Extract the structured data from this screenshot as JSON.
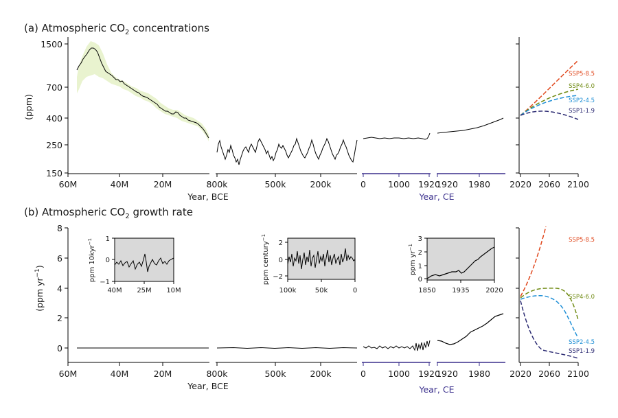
{
  "panel_a": {
    "title": "(a) Atmospheric CO",
    "title_sub": "2",
    "title_tail": " concentrations",
    "ylabel": "(ppm)",
    "yticks": [
      "1500",
      "700",
      "400",
      "250",
      "150"
    ]
  },
  "panel_b": {
    "title": "(b) Atmospheric CO",
    "title_sub": "2",
    "title_tail": " growth rate",
    "ylabel": "(ppm yr",
    "ylabel_sup": "−1",
    "ylabel_tail": ")",
    "yticks": [
      "8",
      "6",
      "4",
      "2",
      "0"
    ]
  },
  "xaxis": {
    "seg1_ticks": [
      "60M",
      "40M",
      "20M"
    ],
    "seg2_ticks": [
      "800k",
      "500k",
      "200k"
    ],
    "seg3_ticks": [
      "0",
      "1000",
      "1920"
    ],
    "seg4_ticks": [
      "1920",
      "1980"
    ],
    "seg5_ticks": [
      "2020",
      "2060",
      "2100"
    ],
    "bce_label": "Year, BCE",
    "ce_label": "Year, CE"
  },
  "insets": {
    "inset1": {
      "ylabel": "ppm 10kyr",
      "ylabel_sup": "−1",
      "yticks": [
        "1",
        "0",
        "−1"
      ],
      "xticks": [
        "40M",
        "25M",
        "10M"
      ]
    },
    "inset2": {
      "ylabel": "ppm century",
      "ylabel_sup": "−1",
      "yticks": [
        "2",
        "0",
        "−2"
      ],
      "xticks": [
        "100k",
        "50k",
        "0"
      ]
    },
    "inset3": {
      "ylabel": "ppm yr",
      "ylabel_sup": "−1",
      "yticks": [
        "3",
        "2",
        "1",
        "0"
      ],
      "xticks": [
        "1850",
        "1935",
        "2020"
      ]
    }
  },
  "scenarios": [
    {
      "name": "SSP5-8.5",
      "color": "#e0461b"
    },
    {
      "name": "SSP4-6.0",
      "color": "#6f8a12"
    },
    {
      "name": "SSP2-4.5",
      "color": "#1e8fd6"
    },
    {
      "name": "SSP1-1.9",
      "color": "#2b2a72"
    }
  ],
  "colors": {
    "line": "#000000",
    "band": "#e9f3cf",
    "ce_axis": "#3a2f8c",
    "inset_bg": "#d9d9d9"
  },
  "chart_data": [
    {
      "type": "line",
      "title": "(a) Atmospheric CO2 concentrations",
      "ylabel": "(ppm)",
      "yscale": "log",
      "ylim": [
        150,
        1700
      ],
      "segments": [
        {
          "xlabel": "Year, BCE",
          "x": [
            "60M",
            "55M",
            "50M",
            "45M",
            "40M",
            "35M",
            "30M",
            "25M",
            "20M",
            "15M",
            "10M",
            "5M",
            "3M"
          ],
          "y": [
            1000,
            1300,
            1450,
            1200,
            1000,
            800,
            700,
            560,
            520,
            450,
            400,
            330,
            280
          ],
          "range_low": [
            800,
            1000,
            1100,
            1000,
            900,
            700,
            600,
            520,
            480,
            420,
            380,
            320,
            270
          ],
          "range_high": [
            1300,
            1500,
            1650,
            1400,
            1150,
            900,
            780,
            610,
            560,
            480,
            420,
            345,
            290
          ]
        },
        {
          "xlabel": "Year, BCE",
          "x": [
            "800k",
            "700k",
            "600k",
            "500k",
            "400k",
            "300k",
            "200k",
            "100k",
            "0"
          ],
          "y": [
            240,
            200,
            230,
            190,
            280,
            190,
            280,
            190,
            280
          ]
        },
        {
          "xlabel": "Year, CE",
          "x": [
            0,
            500,
            1000,
            1500,
            1900
          ],
          "y": [
            278,
            280,
            280,
            278,
            295
          ]
        },
        {
          "xlabel": "Year, CE",
          "x": [
            1920,
            1950,
            1980,
            2000,
            2020
          ],
          "y": [
            303,
            311,
            339,
            370,
            412
          ]
        },
        {
          "series": [
            {
              "name": "SSP5-8.5",
              "x": [
                2020,
                2060,
                2100
              ],
              "y": [
                412,
                600,
                1100
              ]
            },
            {
              "name": "SSP4-6.0",
              "x": [
                2020,
                2060,
                2100
              ],
              "y": [
                412,
                530,
                670
              ]
            },
            {
              "name": "SSP2-4.5",
              "x": [
                2020,
                2060,
                2100
              ],
              "y": [
                412,
                500,
                600
              ]
            },
            {
              "name": "SSP1-1.9",
              "x": [
                2020,
                2060,
                2100
              ],
              "y": [
                412,
                445,
                395
              ]
            }
          ]
        }
      ]
    },
    {
      "type": "line",
      "title": "(b) Atmospheric CO2 growth rate",
      "ylabel": "(ppm yr−1)",
      "ylim": [
        -1,
        8
      ],
      "segments": [
        {
          "xlabel": "Year, BCE",
          "x": [
            "60M",
            "3M"
          ],
          "y": [
            0,
            0
          ]
        },
        {
          "xlabel": "Year, BCE",
          "x": [
            "800k",
            "0"
          ],
          "y": [
            0,
            0
          ]
        },
        {
          "xlabel": "Year, CE",
          "x": [
            0,
            1000,
            1900
          ],
          "y": [
            0,
            0,
            0.3
          ]
        },
        {
          "xlabel": "Year, CE",
          "x": [
            1920,
            1940,
            1960,
            1980,
            2000,
            2020
          ],
          "y": [
            0.5,
            0.2,
            0.6,
            1.1,
            1.6,
            2.3
          ]
        },
        {
          "series": [
            {
              "name": "SSP5-8.5",
              "x": [
                2020,
                2040,
                2060
              ],
              "y": [
                3.4,
                5.5,
                8
              ]
            },
            {
              "name": "SSP4-6.0",
              "x": [
                2020,
                2040,
                2060,
                2080,
                2100
              ],
              "y": [
                3.2,
                3.8,
                3.9,
                3.6,
                1.9
              ]
            },
            {
              "name": "SSP2-4.5",
              "x": [
                2020,
                2040,
                2060,
                2080,
                2100
              ],
              "y": [
                3.1,
                3.4,
                3.3,
                2.5,
                0.8
              ]
            },
            {
              "name": "SSP1-1.9",
              "x": [
                2020,
                2040,
                2060,
                2080,
                2100
              ],
              "y": [
                3.0,
                1.5,
                0.2,
                0,
                -0.7
              ]
            }
          ]
        }
      ],
      "insets": [
        {
          "ylabel": "ppm 10kyr−1",
          "xticks": [
            "40M",
            "25M",
            "10M"
          ],
          "ylim": [
            -1,
            1
          ]
        },
        {
          "ylabel": "ppm century−1",
          "xticks": [
            "100k",
            "50k",
            "0"
          ],
          "ylim": [
            -2.5,
            2.5
          ]
        },
        {
          "ylabel": "ppm yr−1",
          "x": [
            1850,
            1900,
            1935,
            1960,
            1980,
            2000,
            2020
          ],
          "y": [
            0.1,
            0.3,
            0.4,
            0.8,
            1.5,
            2.0,
            2.3
          ],
          "ylim": [
            0,
            3
          ]
        }
      ]
    }
  ]
}
